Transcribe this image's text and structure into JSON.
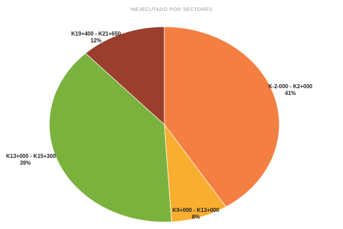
{
  "chart_data": {
    "type": "pie",
    "title": "%EJECUTADO POR SECTORES",
    "slices": [
      {
        "label": "K-2-000 - K2+000",
        "value": 41,
        "value_label": "41%",
        "color": "#f47f43"
      },
      {
        "label": "K9+000 - K13+000",
        "value": 8,
        "value_label": "8%",
        "color": "#f9ae2f"
      },
      {
        "label": "K13+000 - K15+300",
        "value": 39,
        "value_label": "39%",
        "color": "#7bb23d"
      },
      {
        "label": "K19+400 - K21+650",
        "value": 12,
        "value_label": "12%",
        "color": "#9a3f2e"
      }
    ],
    "legend": "none"
  }
}
